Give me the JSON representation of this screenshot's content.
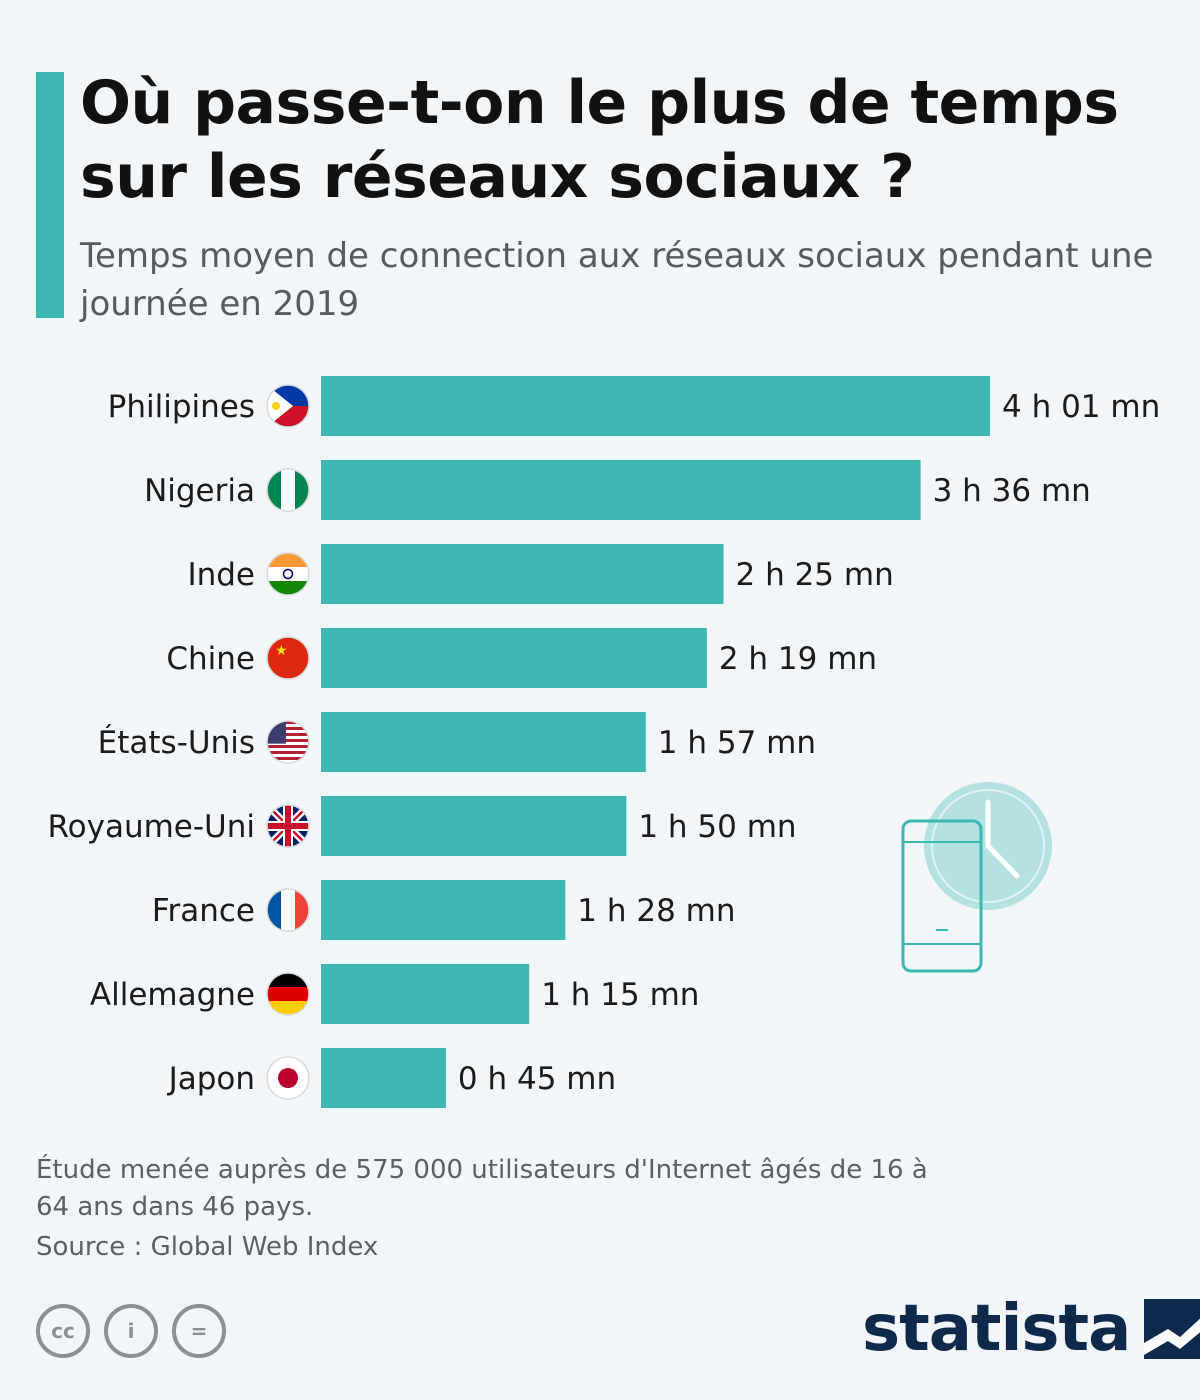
{
  "header": {
    "title": "Où passe-t-on le plus de temps sur les réseaux sociaux ?",
    "subtitle": "Temps moyen de connection aux réseaux sociaux pendant une journée en 2019"
  },
  "chart_data": {
    "type": "bar",
    "orientation": "horizontal",
    "categories": [
      "Philipines",
      "Nigeria",
      "Inde",
      "Chine",
      "États-Unis",
      "Royaume-Uni",
      "France",
      "Allemagne",
      "Japon"
    ],
    "values": [
      241,
      216,
      145,
      139,
      117,
      110,
      88,
      75,
      45
    ],
    "value_labels": [
      "4 h 01 mn",
      "3 h 36 mn",
      "2 h 25 mn",
      "2 h 19 mn",
      "1 h 57 mn",
      "1 h 50 mn",
      "1 h 28 mn",
      "1 h 15 mn",
      "0 h 45 mn"
    ],
    "flags": [
      "flag-philippines-icon",
      "flag-nigeria-icon",
      "flag-india-icon",
      "flag-china-icon",
      "flag-usa-icon",
      "flag-uk-icon",
      "flag-france-icon",
      "flag-germany-icon",
      "flag-japan-icon"
    ],
    "bar_color": "#3db7b3",
    "grid": false
  },
  "footer": {
    "note": "Étude menée auprès de 575 000 utilisateurs d'Internet âgés de 16 à 64 ans dans 46 pays.",
    "source": "Source : Global Web Index",
    "license_icons": [
      "cc-icon",
      "by-icon",
      "nd-icon"
    ],
    "license_glyphs": [
      "cc",
      "i",
      "="
    ],
    "brand": "statista"
  },
  "colors": {
    "accent": "#3db7b3",
    "brand": "#0d2a4c"
  }
}
